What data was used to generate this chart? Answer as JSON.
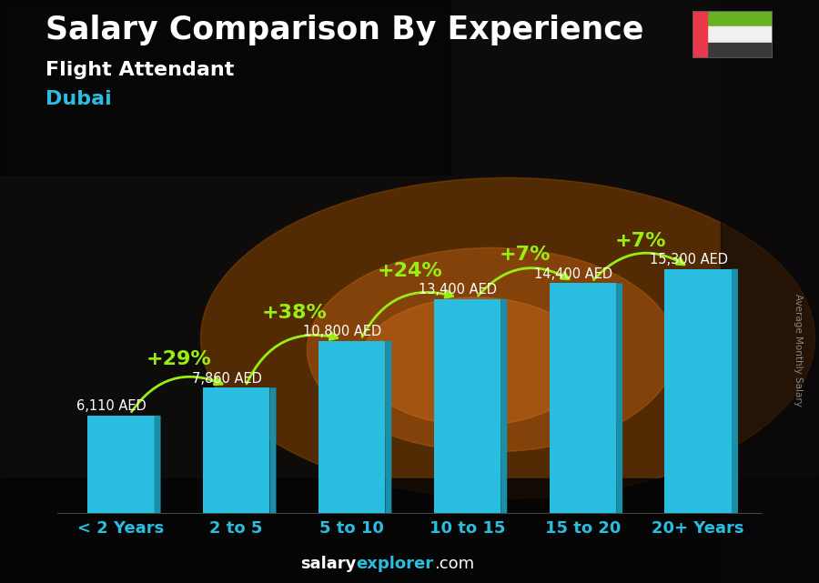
{
  "title": "Salary Comparison By Experience",
  "subtitle1": "Flight Attendant",
  "subtitle2": "Dubai",
  "categories": [
    "< 2 Years",
    "2 to 5",
    "5 to 10",
    "10 to 15",
    "15 to 20",
    "20+ Years"
  ],
  "values": [
    6110,
    7860,
    10800,
    13400,
    14400,
    15300
  ],
  "bar_color_main": "#29bde0",
  "bar_color_right": "#1a8faa",
  "bar_color_top": "#60d8f0",
  "pct_labels": [
    "+29%",
    "+38%",
    "+24%",
    "+7%",
    "+7%"
  ],
  "pct_color": "#99ee11",
  "value_labels": [
    "6,110 AED",
    "7,860 AED",
    "10,800 AED",
    "13,400 AED",
    "14,400 AED",
    "15,300 AED"
  ],
  "bg_dark": "#0d0d12",
  "bg_mid": "#1a100a",
  "title_color": "#ffffff",
  "subtitle1_color": "#ffffff",
  "subtitle2_color": "#29bde0",
  "val_label_color": "#ffffff",
  "footer_salary_color": "#ffffff",
  "footer_explorer_color": "#29bde0",
  "footer_com_color": "#ffffff",
  "ylabel_color": "#aaaaaa",
  "xtick_color": "#29bde0",
  "title_fontsize": 25,
  "subtitle1_fontsize": 16,
  "subtitle2_fontsize": 16,
  "val_label_fontsize": 10.5,
  "pct_fontsize": 16,
  "xtick_fontsize": 13,
  "footer_fontsize": 13,
  "ylim": [
    0,
    19000
  ],
  "flag_green": "#6ab023",
  "flag_white": "#f0f0f0",
  "flag_black": "#3a3a3a",
  "flag_red": "#e8384a"
}
